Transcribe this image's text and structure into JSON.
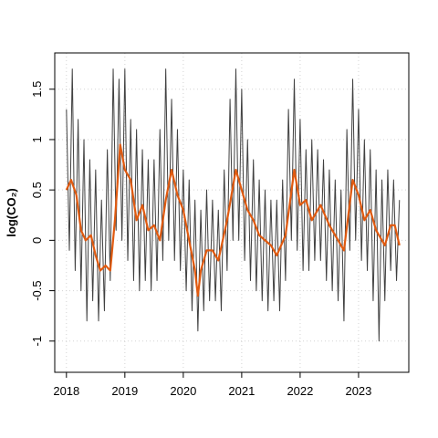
{
  "chart_data": {
    "type": "line",
    "ylabel": "log(CO₂)",
    "xlim": [
      2017.8,
      2023.86
    ],
    "ylim": [
      -1.31,
      1.86
    ],
    "xticks": [
      2018,
      2019,
      2020,
      2021,
      2022,
      2023
    ],
    "yticks": [
      -1.0,
      -0.5,
      0.0,
      0.5,
      1.0,
      1.5
    ],
    "grid": true,
    "series": [
      {
        "color": "#404040",
        "x": [
          2018.0,
          2018.05,
          2018.1,
          2018.15,
          2018.2,
          2018.25,
          2018.3,
          2018.35,
          2018.4,
          2018.45,
          2018.5,
          2018.55,
          2018.6,
          2018.65,
          2018.7,
          2018.75,
          2018.8,
          2018.85,
          2018.9,
          2018.95,
          2019.0,
          2019.05,
          2019.1,
          2019.15,
          2019.2,
          2019.25,
          2019.3,
          2019.35,
          2019.4,
          2019.45,
          2019.5,
          2019.55,
          2019.6,
          2019.65,
          2019.7,
          2019.75,
          2019.8,
          2019.85,
          2019.9,
          2019.95,
          2020.0,
          2020.05,
          2020.1,
          2020.15,
          2020.2,
          2020.25,
          2020.3,
          2020.35,
          2020.4,
          2020.45,
          2020.5,
          2020.55,
          2020.6,
          2020.65,
          2020.7,
          2020.75,
          2020.8,
          2020.85,
          2020.9,
          2020.95,
          2021.0,
          2021.05,
          2021.1,
          2021.15,
          2021.2,
          2021.25,
          2021.3,
          2021.35,
          2021.4,
          2021.45,
          2021.5,
          2021.55,
          2021.6,
          2021.65,
          2021.7,
          2021.75,
          2021.8,
          2021.85,
          2021.9,
          2021.95,
          2022.0,
          2022.05,
          2022.1,
          2022.15,
          2022.2,
          2022.25,
          2022.3,
          2022.35,
          2022.4,
          2022.45,
          2022.5,
          2022.55,
          2022.6,
          2022.65,
          2022.7,
          2022.75,
          2022.8,
          2022.85,
          2022.9,
          2022.95,
          2023.0,
          2023.05,
          2023.1,
          2023.15,
          2023.2,
          2023.25,
          2023.3,
          2023.35,
          2023.4,
          2023.45,
          2023.5,
          2023.55,
          2023.6,
          2023.65,
          2023.7
        ],
        "values": [
          1.3,
          -0.1,
          1.7,
          -0.3,
          1.2,
          -0.5,
          1.0,
          -0.8,
          0.8,
          -0.6,
          0.7,
          -0.8,
          0.4,
          -0.7,
          0.9,
          -0.4,
          1.7,
          0.1,
          1.6,
          0.0,
          1.7,
          -0.2,
          1.2,
          -0.4,
          1.1,
          -0.5,
          0.9,
          -0.4,
          0.8,
          -0.5,
          0.8,
          -0.4,
          1.1,
          -0.2,
          1.7,
          0.0,
          1.4,
          -0.2,
          1.1,
          -0.3,
          0.7,
          -0.5,
          0.6,
          -0.7,
          0.4,
          -0.9,
          0.3,
          -0.7,
          0.5,
          -0.6,
          0.4,
          -0.6,
          0.3,
          -0.7,
          0.7,
          -0.3,
          1.4,
          0.0,
          1.7,
          0.0,
          1.5,
          -0.2,
          1.0,
          -0.4,
          0.8,
          -0.5,
          0.6,
          -0.6,
          0.5,
          -0.7,
          0.4,
          -0.6,
          0.4,
          -0.7,
          0.6,
          -0.4,
          1.3,
          0.0,
          1.6,
          -0.1,
          1.2,
          -0.3,
          0.9,
          -0.3,
          1.0,
          -0.2,
          0.9,
          -0.2,
          0.8,
          -0.4,
          0.7,
          -0.5,
          0.6,
          -0.6,
          0.5,
          -0.8,
          1.1,
          -0.1,
          1.6,
          0.0,
          1.3,
          -0.2,
          1.0,
          -0.3,
          0.9,
          -0.6,
          0.7,
          -1.0,
          0.6,
          -0.6,
          0.7,
          -0.3,
          0.6,
          -0.4,
          0.4
        ]
      },
      {
        "color": "#e05a10",
        "x": [
          2018.0,
          2018.08,
          2018.17,
          2018.25,
          2018.33,
          2018.42,
          2018.5,
          2018.58,
          2018.67,
          2018.75,
          2018.83,
          2018.92,
          2019.0,
          2019.1,
          2019.2,
          2019.3,
          2019.4,
          2019.5,
          2019.6,
          2019.7,
          2019.8,
          2019.9,
          2020.0,
          2020.1,
          2020.2,
          2020.25,
          2020.3,
          2020.4,
          2020.5,
          2020.6,
          2020.75,
          2020.9,
          2021.0,
          2021.1,
          2021.2,
          2021.3,
          2021.4,
          2021.5,
          2021.6,
          2021.75,
          2021.9,
          2022.0,
          2022.1,
          2022.2,
          2022.35,
          2022.5,
          2022.6,
          2022.75,
          2022.9,
          2023.0,
          2023.1,
          2023.2,
          2023.3,
          2023.45,
          2023.55,
          2023.62,
          2023.7
        ],
        "values": [
          0.5,
          0.6,
          0.45,
          0.1,
          0.0,
          0.05,
          -0.15,
          -0.3,
          -0.25,
          -0.3,
          0.2,
          0.95,
          0.7,
          0.6,
          0.2,
          0.35,
          0.1,
          0.15,
          0.0,
          0.4,
          0.7,
          0.45,
          0.3,
          0.0,
          -0.3,
          -0.55,
          -0.3,
          -0.1,
          -0.1,
          -0.2,
          0.2,
          0.7,
          0.5,
          0.3,
          0.2,
          0.05,
          0.0,
          -0.05,
          -0.15,
          0.05,
          0.7,
          0.35,
          0.4,
          0.2,
          0.35,
          0.15,
          0.05,
          -0.1,
          0.6,
          0.45,
          0.2,
          0.3,
          0.1,
          -0.05,
          0.15,
          0.15,
          -0.05
        ]
      }
    ]
  }
}
